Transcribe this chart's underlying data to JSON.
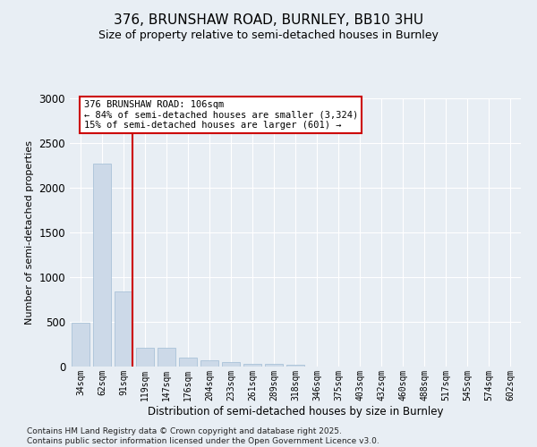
{
  "title_line1": "376, BRUNSHAW ROAD, BURNLEY, BB10 3HU",
  "title_line2": "Size of property relative to semi-detached houses in Burnley",
  "xlabel": "Distribution of semi-detached houses by size in Burnley",
  "ylabel": "Number of semi-detached properties",
  "categories": [
    "34sqm",
    "62sqm",
    "91sqm",
    "119sqm",
    "147sqm",
    "176sqm",
    "204sqm",
    "233sqm",
    "261sqm",
    "289sqm",
    "318sqm",
    "346sqm",
    "375sqm",
    "403sqm",
    "432sqm",
    "460sqm",
    "488sqm",
    "517sqm",
    "545sqm",
    "574sqm",
    "602sqm"
  ],
  "values": [
    490,
    2270,
    840,
    215,
    215,
    100,
    70,
    55,
    35,
    30,
    20,
    5,
    0,
    0,
    0,
    0,
    0,
    0,
    0,
    0,
    0
  ],
  "bar_color": "#ccd9e8",
  "bar_edge_color": "#a0bcd4",
  "vline_color": "#cc0000",
  "vline_xindex": 2,
  "annotation_line1": "376 BRUNSHAW ROAD: 106sqm",
  "annotation_line2": "← 84% of semi-detached houses are smaller (3,324)",
  "annotation_line3": "15% of semi-detached houses are larger (601) →",
  "annotation_box_edgecolor": "#cc0000",
  "ylim": [
    0,
    3000
  ],
  "yticks": [
    0,
    500,
    1000,
    1500,
    2000,
    2500,
    3000
  ],
  "background_color": "#e8eef4",
  "grid_color": "#ffffff",
  "footer_line1": "Contains HM Land Registry data © Crown copyright and database right 2025.",
  "footer_line2": "Contains public sector information licensed under the Open Government Licence v3.0."
}
